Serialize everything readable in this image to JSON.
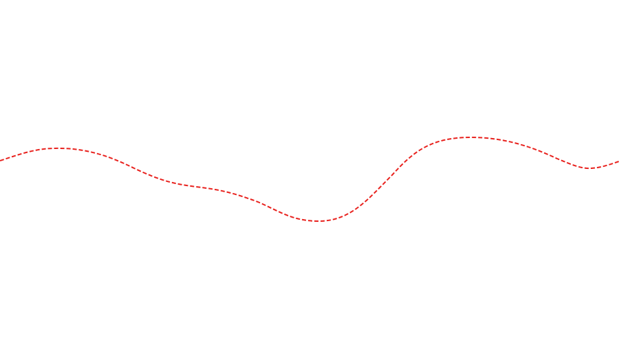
{
  "line": {
    "stroke_color": "#e8211d",
    "style": "dashed",
    "shape": "wave"
  }
}
